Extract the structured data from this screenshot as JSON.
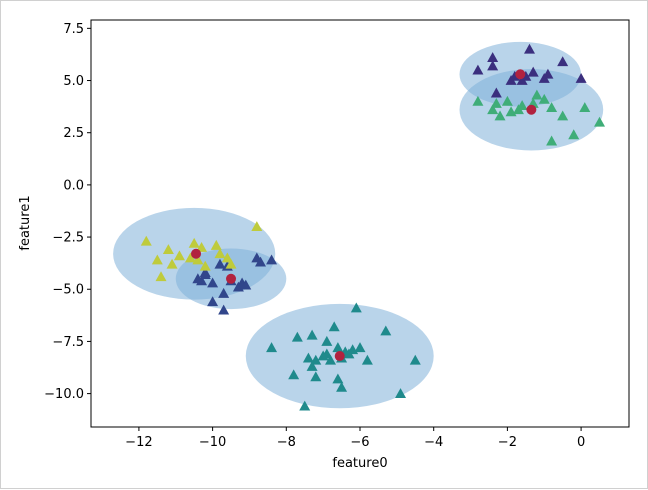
{
  "chart_data": {
    "type": "scatter",
    "title": "",
    "xlabel": "feature0",
    "ylabel": "feature1",
    "xlim": [
      -13.3,
      1.3
    ],
    "ylim": [
      -11.6,
      7.9
    ],
    "xticks": [
      -12,
      -10,
      -8,
      -6,
      -4,
      -2,
      0
    ],
    "yticks": [
      7.5,
      5.0,
      2.5,
      0.0,
      -2.5,
      -5.0,
      -7.5,
      -10.0
    ],
    "xtick_labels": [
      "−12",
      "−10",
      "−8",
      "−6",
      "−4",
      "−2",
      "0"
    ],
    "ytick_labels": [
      "7.5",
      "5.0",
      "2.5",
      "0.0",
      "−2.5",
      "−5.0",
      "−7.5",
      "−10.0"
    ],
    "grid": false,
    "colors": {
      "c0": "#1f8a8c",
      "c1": "#3fad78",
      "c2": "#31468b",
      "c3": "#bfcb3c",
      "c4": "#3b2f7e",
      "centroid": "#b1223f",
      "ellipse": "#7fb1d9"
    },
    "ellipses": [
      {
        "cx": -6.55,
        "cy": -8.2,
        "rx": 2.55,
        "ry": 2.5
      },
      {
        "cx": -10.5,
        "cy": -3.3,
        "rx": 2.2,
        "ry": 2.2
      },
      {
        "cx": -9.5,
        "cy": -4.5,
        "rx": 1.5,
        "ry": 1.45
      },
      {
        "cx": -1.35,
        "cy": 3.6,
        "rx": 1.95,
        "ry": 1.95
      },
      {
        "cx": -1.65,
        "cy": 5.3,
        "rx": 1.65,
        "ry": 1.55
      }
    ],
    "centroids": [
      {
        "x": -6.55,
        "y": -8.2
      },
      {
        "x": -10.45,
        "y": -3.3
      },
      {
        "x": -9.5,
        "y": -4.5
      },
      {
        "x": -1.35,
        "y": 3.6
      },
      {
        "x": -1.65,
        "y": 5.3
      }
    ],
    "series": [
      {
        "color_key": "c0",
        "points": [
          [
            -6.1,
            -5.9
          ],
          [
            -5.3,
            -7.0
          ],
          [
            -6.7,
            -6.8
          ],
          [
            -7.7,
            -7.3
          ],
          [
            -7.3,
            -7.2
          ],
          [
            -6.9,
            -7.5
          ],
          [
            -6.6,
            -7.8
          ],
          [
            -6.4,
            -8.0
          ],
          [
            -6.2,
            -7.9
          ],
          [
            -6.0,
            -7.8
          ],
          [
            -5.8,
            -8.4
          ],
          [
            -6.5,
            -8.3
          ],
          [
            -6.8,
            -8.4
          ],
          [
            -7.0,
            -8.2
          ],
          [
            -7.2,
            -8.4
          ],
          [
            -7.4,
            -8.3
          ],
          [
            -7.3,
            -8.7
          ],
          [
            -7.2,
            -9.2
          ],
          [
            -7.8,
            -9.1
          ],
          [
            -6.6,
            -9.3
          ],
          [
            -6.5,
            -9.7
          ],
          [
            -7.5,
            -10.6
          ],
          [
            -4.9,
            -10.0
          ],
          [
            -4.5,
            -8.4
          ],
          [
            -8.4,
            -7.8
          ],
          [
            -6.9,
            -8.1
          ],
          [
            -6.3,
            -8.1
          ]
        ]
      },
      {
        "color_key": "c1",
        "points": [
          [
            -2.8,
            4.0
          ],
          [
            -2.4,
            3.6
          ],
          [
            -2.2,
            3.3
          ],
          [
            -2.0,
            4.0
          ],
          [
            -1.9,
            3.5
          ],
          [
            -1.7,
            3.6
          ],
          [
            -1.6,
            3.8
          ],
          [
            -1.3,
            3.9
          ],
          [
            -1.2,
            4.3
          ],
          [
            -1.0,
            4.1
          ],
          [
            -0.8,
            3.7
          ],
          [
            -0.5,
            3.3
          ],
          [
            -0.8,
            2.1
          ],
          [
            -0.2,
            2.4
          ],
          [
            0.1,
            3.7
          ],
          [
            0.5,
            3.0
          ],
          [
            -2.3,
            3.9
          ]
        ]
      },
      {
        "color_key": "c2",
        "points": [
          [
            -10.2,
            -4.2
          ],
          [
            -10.3,
            -4.6
          ],
          [
            -10.0,
            -4.7
          ],
          [
            -9.8,
            -3.8
          ],
          [
            -9.6,
            -3.9
          ],
          [
            -9.5,
            -4.6
          ],
          [
            -9.7,
            -5.2
          ],
          [
            -10.0,
            -5.6
          ],
          [
            -9.7,
            -6.0
          ],
          [
            -9.2,
            -4.7
          ],
          [
            -9.3,
            -4.9
          ],
          [
            -9.1,
            -4.8
          ],
          [
            -8.8,
            -3.5
          ],
          [
            -8.7,
            -3.7
          ],
          [
            -8.4,
            -3.6
          ],
          [
            -10.2,
            -4.3
          ],
          [
            -10.4,
            -4.5
          ]
        ]
      },
      {
        "color_key": "c3",
        "points": [
          [
            -11.8,
            -2.7
          ],
          [
            -11.2,
            -3.1
          ],
          [
            -11.5,
            -3.6
          ],
          [
            -11.1,
            -3.8
          ],
          [
            -11.4,
            -4.4
          ],
          [
            -10.9,
            -3.4
          ],
          [
            -10.6,
            -3.5
          ],
          [
            -10.5,
            -2.8
          ],
          [
            -10.3,
            -3.0
          ],
          [
            -10.4,
            -3.6
          ],
          [
            -10.2,
            -3.9
          ],
          [
            -9.9,
            -2.9
          ],
          [
            -9.8,
            -3.3
          ],
          [
            -9.6,
            -3.5
          ],
          [
            -9.5,
            -3.8
          ],
          [
            -8.8,
            -2.0
          ]
        ]
      },
      {
        "color_key": "c4",
        "points": [
          [
            -1.4,
            6.5
          ],
          [
            -2.4,
            6.1
          ],
          [
            -2.4,
            5.7
          ],
          [
            -2.8,
            5.5
          ],
          [
            -1.9,
            5.0
          ],
          [
            -1.8,
            5.2
          ],
          [
            -1.6,
            5.0
          ],
          [
            -1.3,
            5.4
          ],
          [
            -1.0,
            5.1
          ],
          [
            -0.9,
            5.3
          ],
          [
            -0.5,
            5.9
          ],
          [
            0.0,
            5.1
          ],
          [
            -2.3,
            4.4
          ],
          [
            -1.5,
            5.2
          ]
        ]
      }
    ]
  }
}
